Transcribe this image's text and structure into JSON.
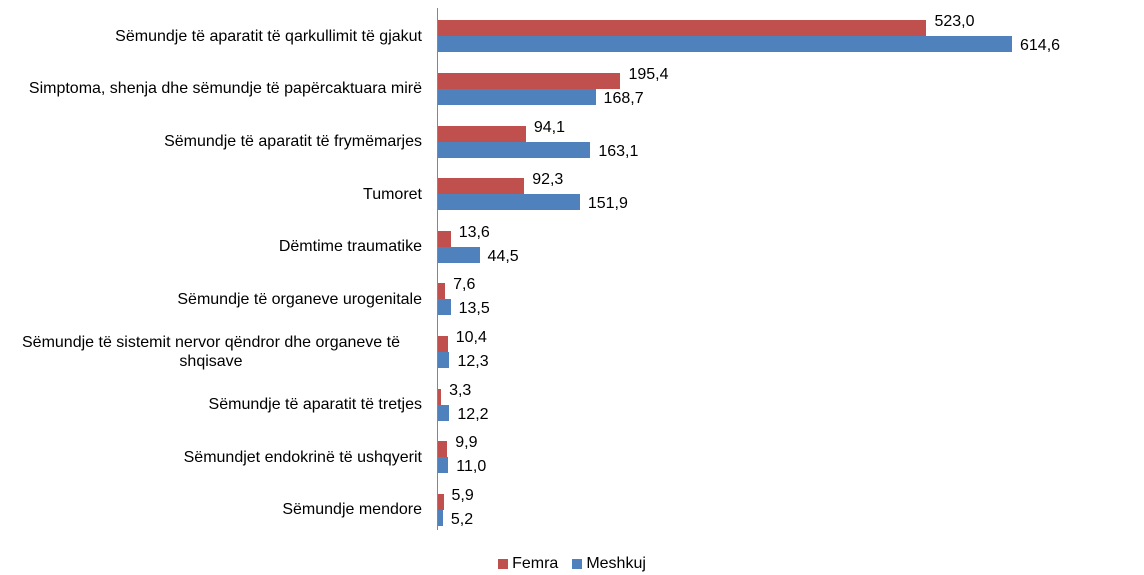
{
  "chart_data": {
    "type": "bar",
    "orientation": "horizontal",
    "categories": [
      "Sëmundje të aparatit të qarkullimit të gjakut",
      "Simptoma, shenja dhe sëmundje të papërcaktuara mirë",
      "Sëmundje të aparatit të frymëmarjes",
      "Tumoret",
      "Dëmtime traumatike",
      "Sëmundje të organeve urogenitale",
      "Sëmundje të sistemit nervor qëndror dhe organeve të shqisave",
      "Sëmundje të aparatit të tretjes",
      "Sëmundjet endokrinë të ushqyerit",
      "Sëmundje mendore"
    ],
    "series": [
      {
        "name": "Femra",
        "color": "#c0504d",
        "values": [
          523.0,
          195.4,
          94.1,
          92.3,
          13.6,
          7.6,
          10.4,
          3.3,
          9.9,
          5.9
        ],
        "value_labels": [
          "523,0",
          "195,4",
          "94,1",
          "92,3",
          "13,6",
          "7,6",
          "10,4",
          "3,3",
          "9,9",
          "5,9"
        ]
      },
      {
        "name": "Meshkuj",
        "color": "#4f81bd",
        "values": [
          614.6,
          168.7,
          163.1,
          151.9,
          44.5,
          13.5,
          12.3,
          12.2,
          11.0,
          5.2
        ],
        "value_labels": [
          "614,6",
          "168,7",
          "163,1",
          "151,9",
          "44,5",
          "13,5",
          "12,3",
          "12,2",
          "11,0",
          "5,2"
        ]
      }
    ],
    "legend": "bottom"
  }
}
